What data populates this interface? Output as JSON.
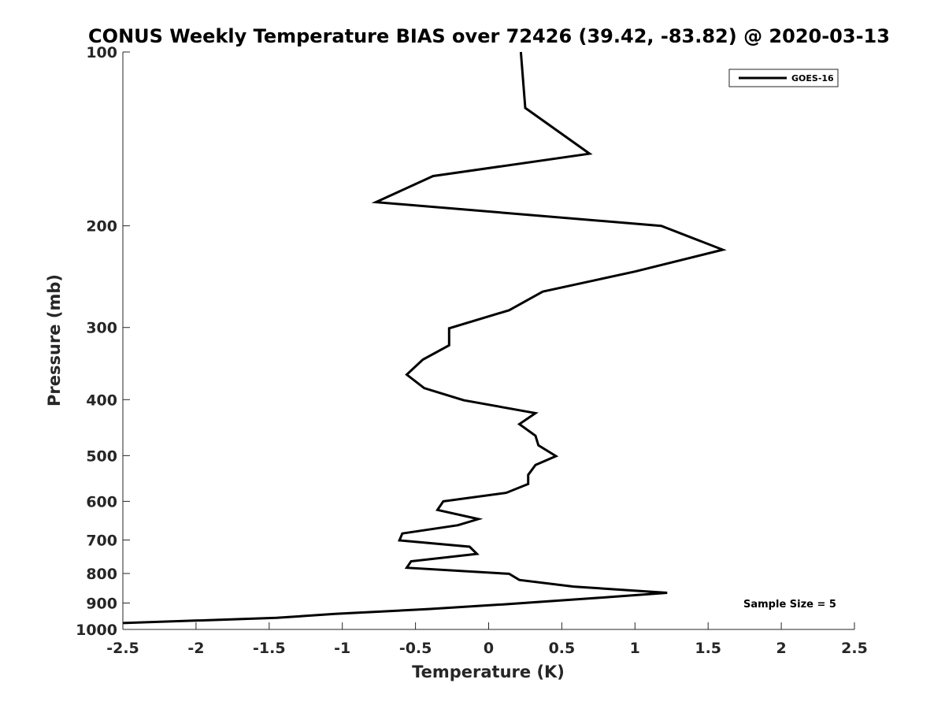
{
  "chart_data": {
    "type": "line",
    "title": "CONUS Weekly Temperature BIAS over 72426 (39.42, -83.82) @ 2020-03-13",
    "xlabel": "Temperature (K)",
    "ylabel": "Pressure (mb)",
    "xlim": [
      -2.5,
      2.5
    ],
    "ylim": [
      100,
      1000
    ],
    "y_scale": "log",
    "y_inverted": true,
    "x_ticks": [
      -2.5,
      -2,
      -1.5,
      -1,
      -0.5,
      0,
      0.5,
      1,
      1.5,
      2,
      2.5
    ],
    "x_tick_labels": [
      "-2.5",
      "-2",
      "-1.5",
      "-1",
      "-0.5",
      "0",
      "0.5",
      "1",
      "1.5",
      "2",
      "2.5"
    ],
    "y_ticks": [
      100,
      200,
      300,
      400,
      500,
      600,
      700,
      800,
      900,
      1000
    ],
    "y_tick_labels": [
      "100",
      "200",
      "300",
      "400",
      "500",
      "600",
      "700",
      "800",
      "900",
      "1000"
    ],
    "grid": false,
    "legend_position": "top-right",
    "annotation": "Sample Size = 5",
    "series": [
      {
        "name": "GOES-16",
        "color": "#000000",
        "points": [
          {
            "x": 0.22,
            "y": 100
          },
          {
            "x": 0.25,
            "y": 125
          },
          {
            "x": 0.69,
            "y": 150
          },
          {
            "x": -0.38,
            "y": 164
          },
          {
            "x": -0.77,
            "y": 182
          },
          {
            "x": 1.18,
            "y": 200
          },
          {
            "x": 1.6,
            "y": 220
          },
          {
            "x": 1.0,
            "y": 240
          },
          {
            "x": 0.37,
            "y": 260
          },
          {
            "x": 0.14,
            "y": 280
          },
          {
            "x": -0.27,
            "y": 301
          },
          {
            "x": -0.27,
            "y": 322
          },
          {
            "x": -0.45,
            "y": 341
          },
          {
            "x": -0.56,
            "y": 362
          },
          {
            "x": -0.44,
            "y": 382
          },
          {
            "x": -0.17,
            "y": 401
          },
          {
            "x": 0.32,
            "y": 422
          },
          {
            "x": 0.21,
            "y": 441
          },
          {
            "x": 0.32,
            "y": 462
          },
          {
            "x": 0.34,
            "y": 480
          },
          {
            "x": 0.46,
            "y": 501
          },
          {
            "x": 0.32,
            "y": 519
          },
          {
            "x": 0.27,
            "y": 540
          },
          {
            "x": 0.27,
            "y": 560
          },
          {
            "x": 0.12,
            "y": 580
          },
          {
            "x": -0.31,
            "y": 600
          },
          {
            "x": -0.35,
            "y": 621
          },
          {
            "x": -0.07,
            "y": 644
          },
          {
            "x": -0.21,
            "y": 660
          },
          {
            "x": -0.59,
            "y": 682
          },
          {
            "x": -0.61,
            "y": 701
          },
          {
            "x": -0.13,
            "y": 719
          },
          {
            "x": -0.08,
            "y": 740
          },
          {
            "x": -0.53,
            "y": 762
          },
          {
            "x": -0.56,
            "y": 782
          },
          {
            "x": 0.14,
            "y": 801
          },
          {
            "x": 0.21,
            "y": 821
          },
          {
            "x": 0.58,
            "y": 843
          },
          {
            "x": 1.22,
            "y": 864
          },
          {
            "x": 0.74,
            "y": 882
          },
          {
            "x": 0.1,
            "y": 905
          },
          {
            "x": -0.41,
            "y": 922
          },
          {
            "x": -1.05,
            "y": 940
          },
          {
            "x": -1.45,
            "y": 955
          },
          {
            "x": -2.5,
            "y": 975
          }
        ]
      }
    ]
  }
}
